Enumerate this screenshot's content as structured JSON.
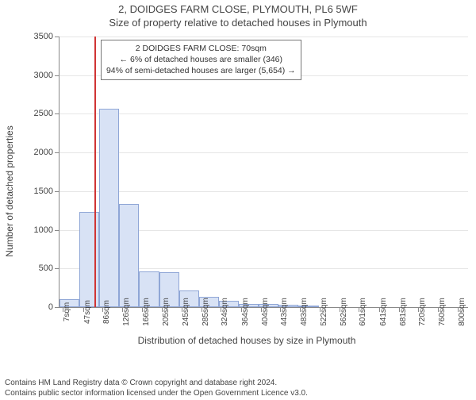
{
  "title": "2, DOIDGES FARM CLOSE, PLYMOUTH, PL6 5WF",
  "subtitle": "Size of property relative to detached houses in Plymouth",
  "chart": {
    "type": "histogram",
    "ylabel": "Number of detached properties",
    "xaxis_title": "Distribution of detached houses by size in Plymouth",
    "ylim": [
      0,
      3500
    ],
    "ytick_step": 500,
    "yticks": [
      0,
      500,
      1000,
      1500,
      2000,
      2500,
      3000,
      3500
    ],
    "x_range_sqm": [
      0,
      820
    ],
    "xticks_sqm": [
      7,
      47,
      86,
      126,
      166,
      205,
      245,
      285,
      324,
      364,
      404,
      443,
      483,
      522,
      562,
      601,
      641,
      681,
      720,
      760,
      800
    ],
    "bar_fill": "#d8e2f5",
    "bar_stroke": "#8fa6d6",
    "grid_color": "#e6e6e6",
    "axis_color": "#888888",
    "background_color": "#ffffff",
    "text_color": "#444444",
    "marker_color": "#d03434",
    "bars": [
      {
        "x0_sqm": 0,
        "x1_sqm": 40,
        "count": 100
      },
      {
        "x0_sqm": 40,
        "x1_sqm": 80,
        "count": 1230
      },
      {
        "x0_sqm": 80,
        "x1_sqm": 120,
        "count": 2570
      },
      {
        "x0_sqm": 120,
        "x1_sqm": 160,
        "count": 1330
      },
      {
        "x0_sqm": 160,
        "x1_sqm": 200,
        "count": 460
      },
      {
        "x0_sqm": 200,
        "x1_sqm": 240,
        "count": 450
      },
      {
        "x0_sqm": 240,
        "x1_sqm": 280,
        "count": 220
      },
      {
        "x0_sqm": 280,
        "x1_sqm": 320,
        "count": 130
      },
      {
        "x0_sqm": 320,
        "x1_sqm": 360,
        "count": 80
      },
      {
        "x0_sqm": 360,
        "x1_sqm": 400,
        "count": 45
      },
      {
        "x0_sqm": 400,
        "x1_sqm": 440,
        "count": 40
      },
      {
        "x0_sqm": 440,
        "x1_sqm": 480,
        "count": 35
      },
      {
        "x0_sqm": 480,
        "x1_sqm": 520,
        "count": 20
      },
      {
        "x0_sqm": 520,
        "x1_sqm": 560,
        "count": 0
      },
      {
        "x0_sqm": 560,
        "x1_sqm": 600,
        "count": 0
      },
      {
        "x0_sqm": 600,
        "x1_sqm": 640,
        "count": 0
      },
      {
        "x0_sqm": 640,
        "x1_sqm": 680,
        "count": 0
      },
      {
        "x0_sqm": 680,
        "x1_sqm": 720,
        "count": 0
      },
      {
        "x0_sqm": 720,
        "x1_sqm": 760,
        "count": 0
      },
      {
        "x0_sqm": 760,
        "x1_sqm": 800,
        "count": 0
      }
    ],
    "marker_sqm": 70
  },
  "info_box": {
    "line1": "2 DOIDGES FARM CLOSE: 70sqm",
    "line2": "← 6% of detached houses are smaller (346)",
    "line3": "94% of semi-detached houses are larger (5,654) →"
  },
  "credit": {
    "line1": "Contains HM Land Registry data © Crown copyright and database right 2024.",
    "line2": "Contains public sector information licensed under the Open Government Licence v3.0."
  }
}
